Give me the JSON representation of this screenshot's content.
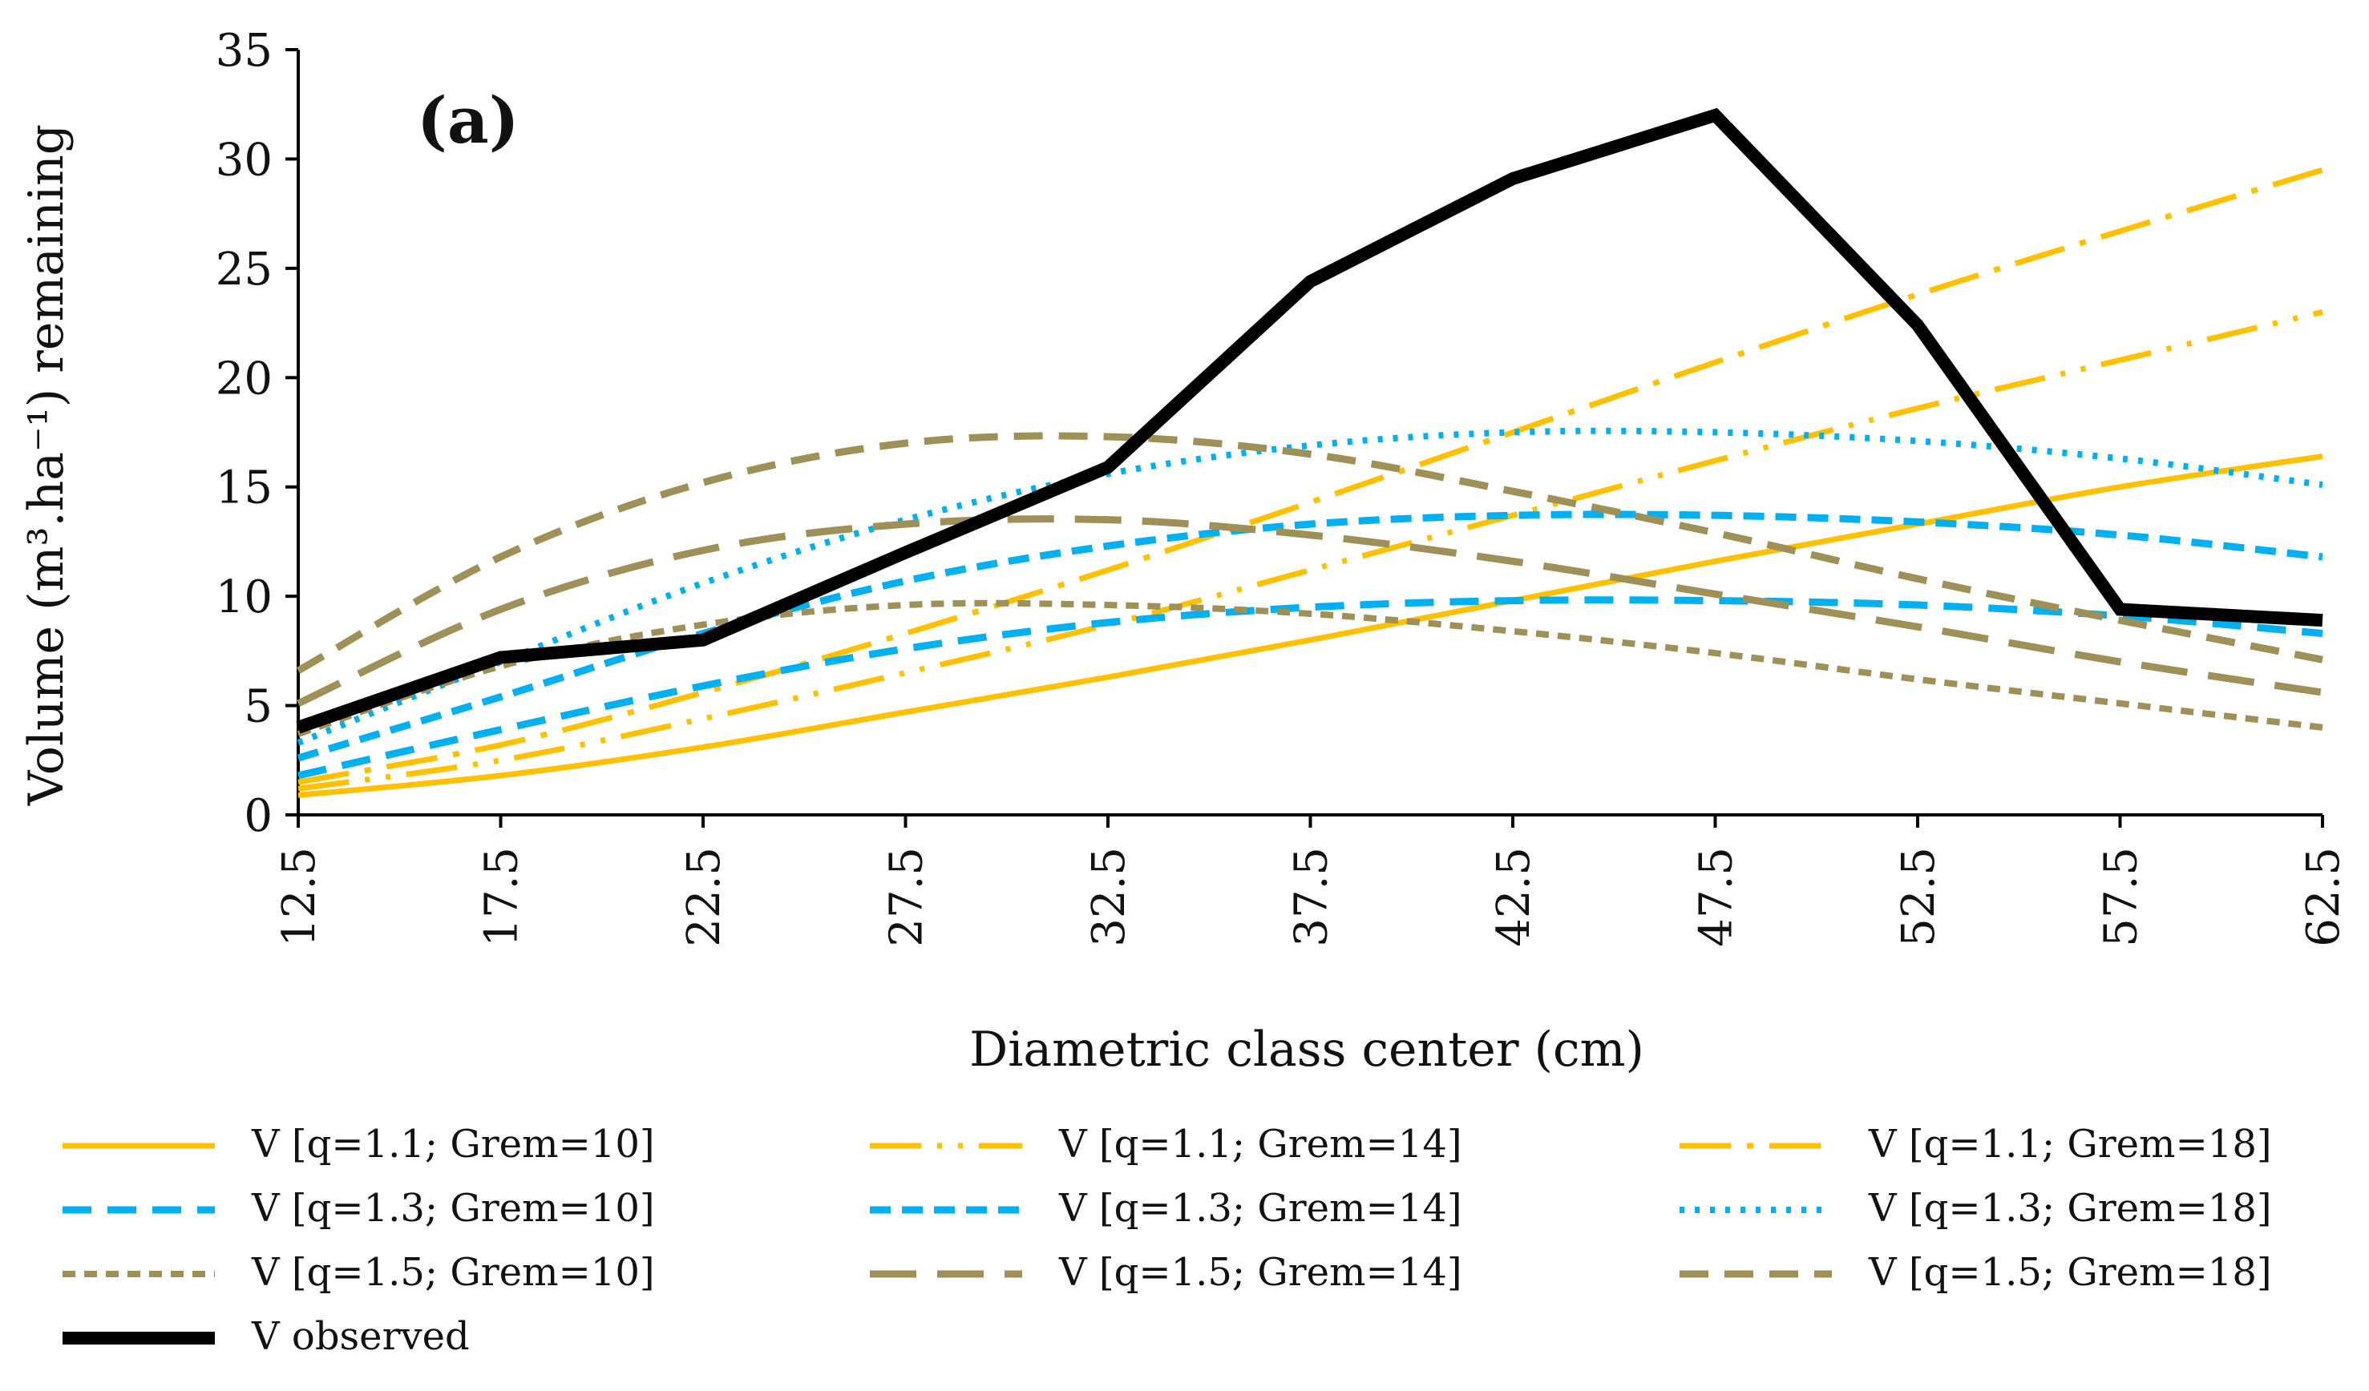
{
  "chart_data": {
    "type": "line",
    "panel_label": "(a)",
    "xlabel": "Diametric class center  (cm)",
    "ylabel": "Volume (m³.ha⁻¹) remaining",
    "ylim": [
      0,
      35
    ],
    "yticks": [
      "0",
      "5",
      "10",
      "15",
      "20",
      "25",
      "30",
      "35"
    ],
    "x": [
      "12.5",
      "17.5",
      "22.5",
      "27.5",
      "32.5",
      "37.5",
      "42.5",
      "47.5",
      "52.5",
      "57.5",
      "62.5"
    ],
    "legend_position": "bottom",
    "series": [
      {
        "name": "V [q=1.1; Grem=10]",
        "color": "#FFC000",
        "style": "solid",
        "values": [
          0.9,
          1.8,
          3.1,
          4.7,
          6.3,
          8.0,
          9.8,
          11.6,
          13.3,
          15.0,
          16.4
        ]
      },
      {
        "name": "V [q=1.1; Grem=14]",
        "color": "#FFC000",
        "style": "longdashdotdot",
        "values": [
          1.2,
          2.5,
          4.4,
          6.5,
          8.7,
          11.2,
          13.7,
          16.2,
          18.6,
          20.8,
          23.0
        ]
      },
      {
        "name": "V [q=1.1; Grem=18]",
        "color": "#FFC000",
        "style": "longdashdot",
        "values": [
          1.5,
          3.2,
          5.6,
          8.3,
          11.2,
          14.3,
          17.5,
          20.7,
          23.8,
          26.7,
          29.5
        ]
      },
      {
        "name": "V [q=1.3; Grem=10]",
        "color": "#00B0F0",
        "style": "dash",
        "values": [
          1.8,
          3.9,
          5.9,
          7.6,
          8.8,
          9.5,
          9.8,
          9.8,
          9.6,
          9.1,
          8.3
        ]
      },
      {
        "name": "V [q=1.3; Grem=14]",
        "color": "#00B0F0",
        "style": "squaredash",
        "values": [
          2.6,
          5.4,
          8.3,
          10.7,
          12.3,
          13.3,
          13.7,
          13.7,
          13.4,
          12.8,
          11.8
        ]
      },
      {
        "name": "V [q=1.3; Grem=18]",
        "color": "#00B0F0",
        "style": "dot",
        "values": [
          3.3,
          7.0,
          10.6,
          13.5,
          15.6,
          16.9,
          17.5,
          17.5,
          17.1,
          16.3,
          15.1
        ]
      },
      {
        "name": "V [q=1.5; Grem=10]",
        "color": "#9E9057",
        "style": "shortdash",
        "values": [
          3.7,
          6.8,
          8.7,
          9.6,
          9.6,
          9.2,
          8.4,
          7.4,
          6.2,
          5.1,
          4.0
        ]
      },
      {
        "name": "V [q=1.5; Grem=14]",
        "color": "#9E9057",
        "style": "longdash",
        "values": [
          5.1,
          9.4,
          12.1,
          13.3,
          13.5,
          12.8,
          11.6,
          10.1,
          8.6,
          7.0,
          5.6
        ]
      },
      {
        "name": "V [q=1.5; Grem=18]",
        "color": "#9E9057",
        "style": "dash",
        "values": [
          6.6,
          11.8,
          15.2,
          17.0,
          17.3,
          16.5,
          14.8,
          12.9,
          10.8,
          8.9,
          7.1
        ]
      },
      {
        "name": "V observed",
        "color": "#000000",
        "style": "thick",
        "values": [
          4.0,
          7.2,
          8.0,
          12.0,
          15.9,
          24.4,
          29.1,
          32.0,
          22.4,
          9.4,
          8.9
        ]
      }
    ]
  }
}
